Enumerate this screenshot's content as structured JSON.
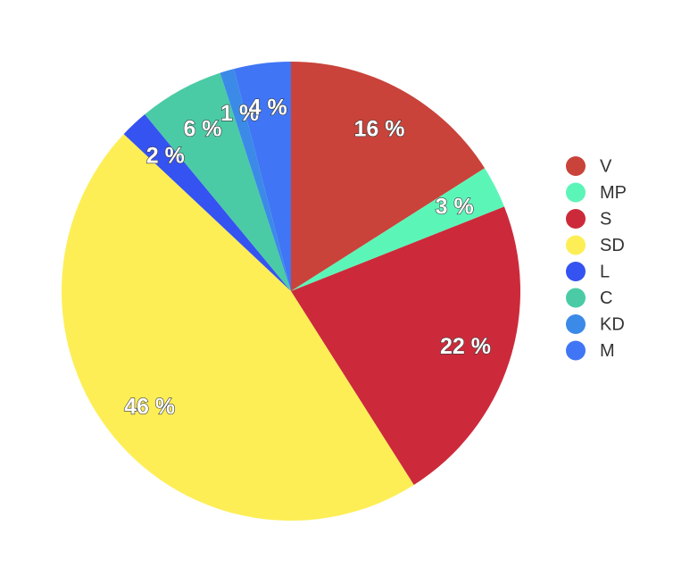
{
  "chart_data": {
    "type": "pie",
    "slices": [
      {
        "label": "V",
        "value": 16,
        "value_label": "16 %",
        "color": "#c9433a"
      },
      {
        "label": "MP",
        "value": 3,
        "value_label": "3 %",
        "color": "#5cf5b8"
      },
      {
        "label": "S",
        "value": 22,
        "value_label": "22 %",
        "color": "#cc2a3a"
      },
      {
        "label": "SD",
        "value": 46,
        "value_label": "46 %",
        "color": "#fdee56"
      },
      {
        "label": "L",
        "value": 2,
        "value_label": "2 %",
        "color": "#3553f0"
      },
      {
        "label": "C",
        "value": 6,
        "value_label": "6 %",
        "color": "#4acba5"
      },
      {
        "label": "KD",
        "value": 1,
        "value_label": "1 %",
        "color": "#3c8ae8"
      },
      {
        "label": "M",
        "value": 4,
        "value_label": "4 %",
        "color": "#4076f5"
      }
    ],
    "legend_position": "right"
  }
}
